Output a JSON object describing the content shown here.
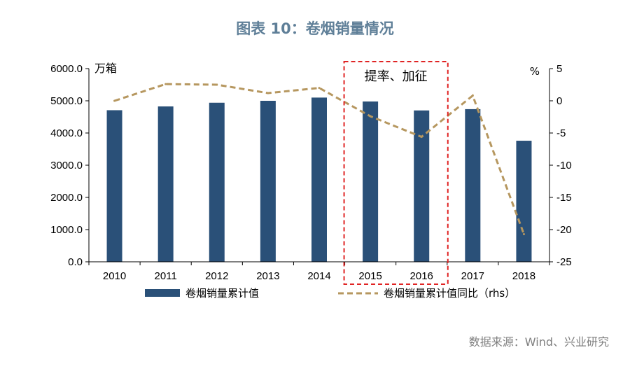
{
  "figure": {
    "title": "图表 10：卷烟销量情况",
    "source": "数据来源：Wind、兴业研究"
  },
  "chart_data": {
    "type": "bar",
    "categories": [
      "2010",
      "2011",
      "2012",
      "2013",
      "2014",
      "2015",
      "2016",
      "2017",
      "2018"
    ],
    "series": [
      {
        "name": "卷烟销量累计值",
        "type": "bar",
        "axis": "left",
        "values": [
          4708,
          4825,
          4940,
          5000,
          5100,
          4979,
          4701,
          4741,
          3760
        ]
      },
      {
        "name": "卷烟销量累计值同比（rhs）",
        "type": "line",
        "axis": "right",
        "values": [
          0.0,
          2.6,
          2.5,
          1.2,
          2.0,
          -2.4,
          -5.6,
          0.8,
          -20.7
        ]
      }
    ],
    "left_axis": {
      "unit": "万箱",
      "ylim": [
        0,
        6000
      ],
      "ticks": [
        "0.0",
        "1000.0",
        "2000.0",
        "3000.0",
        "4000.0",
        "5000.0",
        "6000.0"
      ],
      "tick_values": [
        0,
        1000,
        2000,
        3000,
        4000,
        5000,
        6000
      ]
    },
    "right_axis": {
      "unit": "%",
      "ylim": [
        -25,
        5
      ],
      "ticks": [
        "-25",
        "-20",
        "-15",
        "-10",
        "-5",
        "0",
        "5"
      ],
      "tick_values": [
        -25,
        -20,
        -15,
        -10,
        -5,
        0,
        5
      ]
    },
    "annotation": {
      "text": "提率、加征",
      "categories": [
        "2015",
        "2016"
      ]
    },
    "legend_placement": "bottom",
    "grid": false,
    "colors": {
      "bar": "#2a5078",
      "line": "#b6975f",
      "annotation_box": "#e02424",
      "title": "#5f7f98",
      "source": "#7f7f7f",
      "axis": "#000000"
    }
  }
}
